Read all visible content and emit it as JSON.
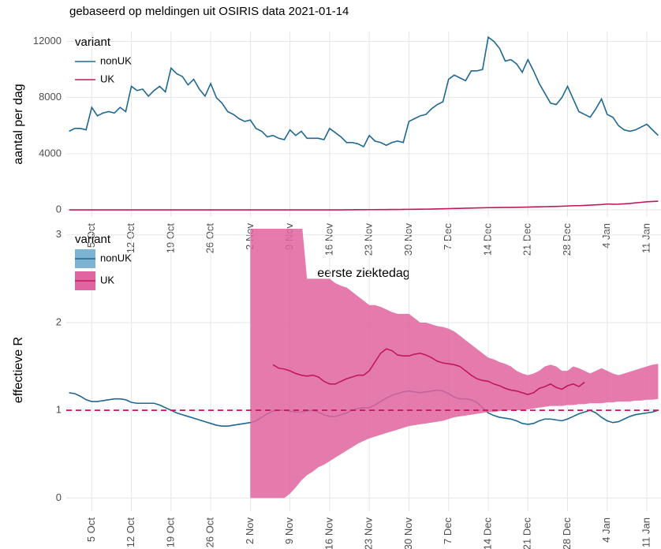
{
  "chart_data": [
    {
      "type": "line",
      "title": "gebaseerd op meldingen uit OSIRIS data 2021-01-14",
      "y_label": "aantal per dag",
      "x_label": "eerste ziektedag",
      "legend_title": "variant",
      "legend": "top-left",
      "grid": true,
      "categories": [
        null,
        null,
        null,
        null,
        "5 Oct",
        null,
        null,
        null,
        null,
        null,
        null,
        "12 Oct",
        null,
        null,
        null,
        null,
        null,
        null,
        "19 Oct",
        null,
        null,
        null,
        null,
        null,
        null,
        "26 Oct",
        null,
        null,
        null,
        null,
        null,
        null,
        "2 Nov",
        null,
        null,
        null,
        null,
        null,
        null,
        "9 Nov",
        null,
        null,
        null,
        null,
        null,
        null,
        "16 Nov",
        null,
        null,
        null,
        null,
        null,
        null,
        "23 Nov",
        null,
        null,
        null,
        null,
        null,
        null,
        "30 Nov",
        null,
        null,
        null,
        null,
        null,
        null,
        "7 Dec",
        null,
        null,
        null,
        null,
        null,
        null,
        "14 Dec",
        null,
        null,
        null,
        null,
        null,
        null,
        "21 Dec",
        null,
        null,
        null,
        null,
        null,
        null,
        "28 Dec",
        null,
        null,
        null,
        null,
        null,
        null,
        "4 Jan",
        null,
        null,
        null,
        null,
        null,
        null,
        "11 Jan",
        null,
        null
      ],
      "ylim": [
        -500,
        12700
      ],
      "yticks": [
        0,
        4000,
        8000,
        12000
      ],
      "series": [
        {
          "name": "nonUK",
          "color": "#1f6891",
          "values": [
            5600,
            5800,
            5800,
            5700,
            7300,
            6700,
            6900,
            7000,
            6900,
            7300,
            7000,
            8800,
            8500,
            8600,
            8100,
            8500,
            8800,
            8400,
            10100,
            9700,
            9500,
            8900,
            9300,
            8600,
            8100,
            9000,
            8000,
            7600,
            7000,
            6800,
            6500,
            6300,
            6400,
            5800,
            5600,
            5200,
            5300,
            5100,
            5000,
            5700,
            5300,
            5600,
            5100,
            5100,
            5100,
            5000,
            5800,
            5500,
            5200,
            4800,
            4800,
            4700,
            4500,
            5300,
            4900,
            4800,
            4600,
            4800,
            4900,
            4800,
            6300,
            6500,
            6700,
            6800,
            7200,
            7500,
            7700,
            9300,
            9600,
            9400,
            9200,
            9900,
            9900,
            10000,
            12300,
            12000,
            11500,
            10600,
            10700,
            10400,
            9800,
            10700,
            9900,
            9000,
            8300,
            7600,
            7500,
            8000,
            8800,
            7900,
            7000,
            6800,
            6600,
            7200,
            7900,
            6800,
            6600,
            6000,
            5700,
            5600,
            5700,
            5900,
            6100,
            5700,
            5300
          ]
        },
        {
          "name": "UK",
          "color": "#c2185b",
          "values": [
            0,
            0,
            0,
            0,
            0,
            0,
            0,
            0,
            0,
            0,
            0,
            0,
            0,
            0,
            0,
            0,
            0,
            0,
            0,
            0,
            0,
            0,
            0,
            0,
            0,
            0,
            0,
            0,
            0,
            0,
            0,
            0,
            0,
            0,
            0,
            0,
            0,
            0,
            0,
            0,
            0,
            0,
            0,
            0,
            0,
            0,
            0,
            0,
            0,
            10,
            10,
            15,
            15,
            20,
            20,
            25,
            25,
            30,
            30,
            35,
            40,
            45,
            50,
            55,
            60,
            70,
            80,
            90,
            100,
            110,
            120,
            130,
            140,
            150,
            160,
            165,
            170,
            175,
            180,
            185,
            190,
            200,
            210,
            220,
            230,
            240,
            250,
            260,
            280,
            300,
            300,
            320,
            340,
            360,
            380,
            420,
            400,
            410,
            430,
            460,
            500,
            540,
            580,
            600,
            620
          ]
        }
      ]
    },
    {
      "type": "line",
      "y_label": "effectieve R",
      "legend_title": "variant",
      "legend": "top-left",
      "grid": true,
      "hline": 1,
      "categories": [
        null,
        null,
        null,
        null,
        "5 Oct",
        null,
        null,
        null,
        null,
        null,
        null,
        "12 Oct",
        null,
        null,
        null,
        null,
        null,
        null,
        "19 Oct",
        null,
        null,
        null,
        null,
        null,
        null,
        "26 Oct",
        null,
        null,
        null,
        null,
        null,
        null,
        "2 Nov",
        null,
        null,
        null,
        null,
        null,
        null,
        "9 Nov",
        null,
        null,
        null,
        null,
        null,
        null,
        "16 Nov",
        null,
        null,
        null,
        null,
        null,
        null,
        "23 Nov",
        null,
        null,
        null,
        null,
        null,
        null,
        "30 Nov",
        null,
        null,
        null,
        null,
        null,
        null,
        "7 Dec",
        null,
        null,
        null,
        null,
        null,
        null,
        "14 Dec",
        null,
        null,
        null,
        null,
        null,
        null,
        "21 Dec",
        null,
        null,
        null,
        null,
        null,
        null,
        "28 Dec",
        null,
        null,
        null,
        null,
        null,
        null,
        "4 Jan",
        null,
        null,
        null,
        null,
        null,
        null,
        "11 Jan",
        null,
        null
      ],
      "ylim": [
        -0.15,
        3.07
      ],
      "yticks": [
        0,
        1,
        2,
        3
      ],
      "series": [
        {
          "name": "nonUK",
          "color": "#1f6891",
          "band_color": "#7fb3d3",
          "values": [
            1.2,
            1.19,
            1.16,
            1.12,
            1.1,
            1.1,
            1.11,
            1.12,
            1.13,
            1.13,
            1.12,
            1.09,
            1.08,
            1.08,
            1.08,
            1.08,
            1.06,
            1.03,
            1.0,
            0.97,
            0.95,
            0.93,
            0.91,
            0.89,
            0.87,
            0.85,
            0.83,
            0.82,
            0.82,
            0.83,
            0.84,
            0.85,
            0.86,
            0.88,
            0.92,
            0.96,
            0.99,
            1.0,
            1.0,
            0.99,
            0.98,
            0.98,
            0.99,
            1.0,
            0.98,
            0.95,
            0.93,
            0.93,
            0.95,
            0.97,
            1.0,
            1.02,
            1.03,
            1.03,
            1.06,
            1.1,
            1.14,
            1.17,
            1.19,
            1.21,
            1.22,
            1.21,
            1.2,
            1.21,
            1.22,
            1.23,
            1.22,
            1.19,
            1.15,
            1.13,
            1.13,
            1.12,
            1.09,
            1.03,
            0.97,
            0.94,
            0.92,
            0.91,
            0.9,
            0.88,
            0.85,
            0.84,
            0.85,
            0.88,
            0.9,
            0.9,
            0.89,
            0.88,
            0.9,
            0.93,
            0.96,
            0.98,
            1.0,
            0.97,
            0.92,
            0.88,
            0.86,
            0.87,
            0.9,
            0.93,
            0.95,
            0.96,
            0.97,
            0.98,
            1.0
          ]
        },
        {
          "name": "UK",
          "color": "#c2185b",
          "band_color": "#e0649f",
          "values": [
            null,
            null,
            null,
            null,
            null,
            null,
            null,
            null,
            null,
            null,
            null,
            null,
            null,
            null,
            null,
            null,
            null,
            null,
            null,
            null,
            null,
            null,
            null,
            null,
            null,
            null,
            null,
            null,
            null,
            null,
            null,
            null,
            null,
            null,
            null,
            null,
            1.52,
            1.48,
            1.47,
            1.45,
            1.42,
            1.4,
            1.39,
            1.4,
            1.38,
            1.33,
            1.3,
            1.3,
            1.33,
            1.36,
            1.38,
            1.4,
            1.4,
            1.45,
            1.55,
            1.65,
            1.7,
            1.68,
            1.63,
            1.62,
            1.62,
            1.64,
            1.65,
            1.63,
            1.6,
            1.56,
            1.54,
            1.53,
            1.52,
            1.5,
            1.45,
            1.4,
            1.36,
            1.34,
            1.33,
            1.3,
            1.28,
            1.25,
            1.23,
            1.22,
            1.2,
            1.18,
            1.2,
            1.25,
            1.27,
            1.3,
            1.26,
            1.24,
            1.28,
            1.3,
            1.27,
            1.32,
            null,
            null,
            null,
            null,
            null,
            null,
            null,
            null,
            null,
            null,
            null,
            null,
            null
          ],
          "lower": [
            null,
            null,
            null,
            null,
            null,
            null,
            null,
            null,
            null,
            null,
            null,
            null,
            null,
            null,
            null,
            null,
            null,
            null,
            null,
            null,
            null,
            null,
            null,
            null,
            null,
            null,
            null,
            null,
            null,
            null,
            null,
            null,
            0,
            0,
            0,
            0,
            0,
            0,
            0,
            0.05,
            0.12,
            0.2,
            0.26,
            0.3,
            0.35,
            0.38,
            0.42,
            0.46,
            0.5,
            0.54,
            0.58,
            0.62,
            0.65,
            0.68,
            0.7,
            0.72,
            0.74,
            0.76,
            0.78,
            0.8,
            0.82,
            0.83,
            0.84,
            0.85,
            0.86,
            0.87,
            0.88,
            0.9,
            0.92,
            0.93,
            0.94,
            0.95,
            0.96,
            0.97,
            0.98,
            0.98,
            0.99,
            1.0,
            1.0,
            1.0,
            1.0,
            1.01,
            1.02,
            1.03,
            1.04,
            1.05,
            1.05,
            1.05,
            1.06,
            1.06,
            1.07,
            1.07,
            1.08,
            1.08,
            1.08,
            1.09,
            1.09,
            1.1,
            1.1,
            1.1,
            1.11,
            1.11,
            1.12,
            1.12,
            1.13
          ],
          "upper": [
            null,
            null,
            null,
            null,
            null,
            null,
            null,
            null,
            null,
            null,
            null,
            null,
            null,
            null,
            null,
            null,
            null,
            null,
            null,
            null,
            null,
            null,
            null,
            null,
            null,
            null,
            null,
            null,
            null,
            null,
            null,
            null,
            4,
            4,
            4,
            4,
            4,
            4,
            4,
            4,
            3.5,
            3.2,
            2.5,
            2.5,
            2.5,
            2.5,
            2.5,
            2.45,
            2.42,
            2.4,
            2.35,
            2.3,
            2.25,
            2.2,
            2.2,
            2.18,
            2.15,
            2.12,
            2.1,
            2.1,
            2.1,
            2.05,
            2.0,
            2.0,
            1.98,
            1.96,
            1.95,
            1.93,
            1.9,
            1.85,
            1.8,
            1.75,
            1.7,
            1.65,
            1.6,
            1.58,
            1.55,
            1.53,
            1.5,
            1.45,
            1.42,
            1.4,
            1.42,
            1.45,
            1.5,
            1.52,
            1.5,
            1.45,
            1.45,
            1.5,
            1.48,
            1.45,
            1.42,
            1.45,
            1.48,
            1.45,
            1.42,
            1.4,
            1.42,
            1.44,
            1.46,
            1.48,
            1.5,
            1.52,
            1.53
          ]
        }
      ]
    }
  ]
}
